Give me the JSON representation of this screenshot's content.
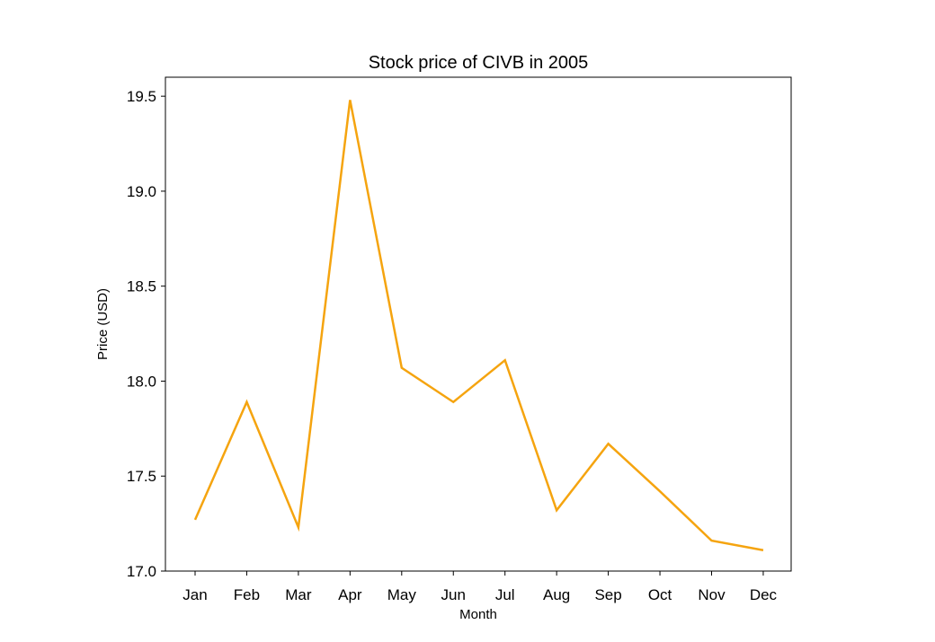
{
  "chart_data": {
    "type": "line",
    "title": "Stock price of CIVB in 2005",
    "xlabel": "Month",
    "ylabel": "Price (USD)",
    "categories": [
      "Jan",
      "Feb",
      "Mar",
      "Apr",
      "May",
      "Jun",
      "Jul",
      "Aug",
      "Sep",
      "Oct",
      "Nov",
      "Dec"
    ],
    "series": [
      {
        "color": "#f5a40f",
        "values": [
          17.27,
          17.89,
          17.23,
          19.48,
          18.07,
          17.89,
          18.11,
          17.32,
          17.67,
          17.42,
          17.16,
          17.11
        ]
      }
    ],
    "ylim": [
      17.0,
      19.6
    ],
    "yticks": [
      17.0,
      17.5,
      18.0,
      18.5,
      19.0,
      19.5
    ],
    "ytick_labels": [
      "17.0",
      "17.5",
      "18.0",
      "18.5",
      "19.0",
      "19.5"
    ],
    "grid": false,
    "legend": "none"
  }
}
